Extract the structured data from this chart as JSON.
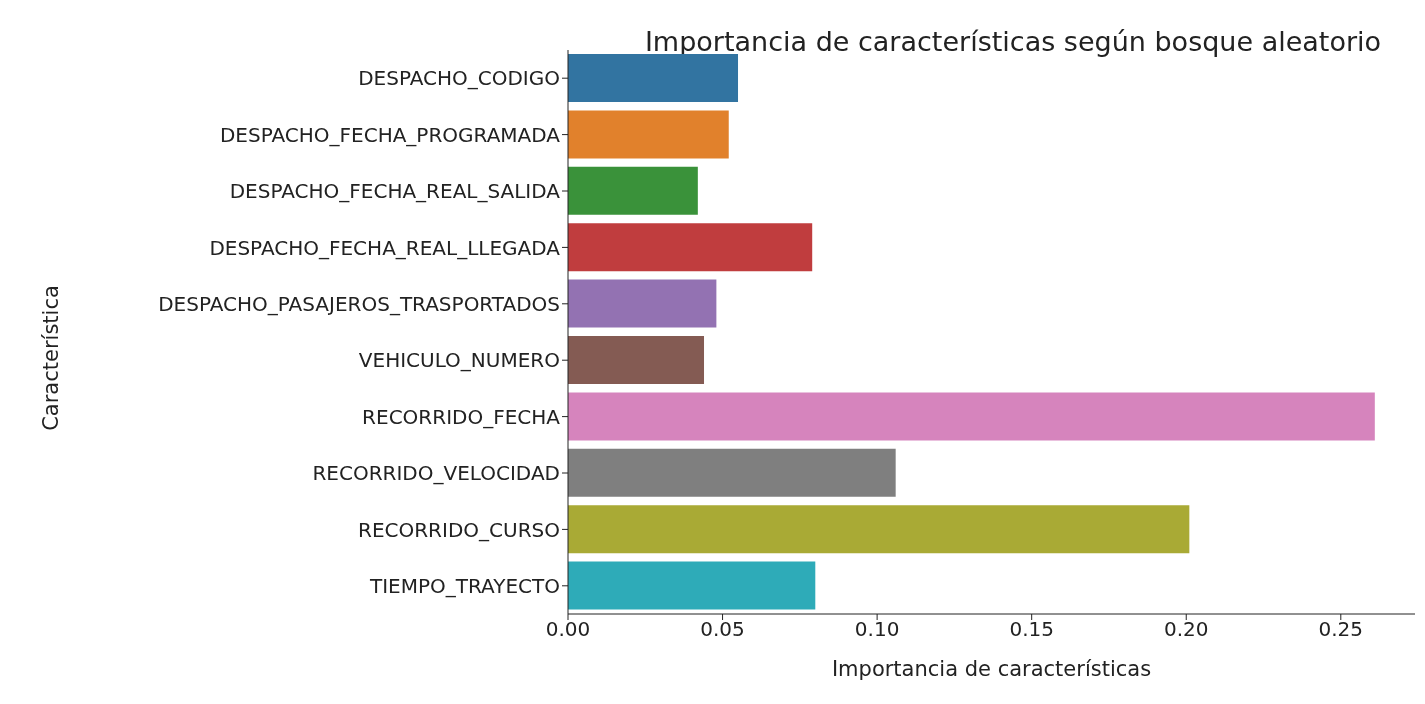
{
  "chart_data": {
    "type": "bar",
    "orientation": "horizontal",
    "title": "Importancia de características según bosque aleatorio",
    "xlabel": "Importancia de características",
    "ylabel": "Característica",
    "categories": [
      "DESPACHO_CODIGO",
      "DESPACHO_FECHA_PROGRAMADA",
      "DESPACHO_FECHA_REAL_SALIDA",
      "DESPACHO_FECHA_REAL_LLEGADA",
      "DESPACHO_PASAJEROS_TRASPORTADOS",
      "VEHICULO_NUMERO",
      "RECORRIDO_FECHA",
      "RECORRIDO_VELOCIDAD",
      "RECORRIDO_CURSO",
      "TIEMPO_TRAYECTO"
    ],
    "values": [
      0.055,
      0.052,
      0.042,
      0.079,
      0.048,
      0.044,
      0.261,
      0.106,
      0.201,
      0.08
    ],
    "colors": [
      "#3274a1",
      "#e1812c",
      "#3a923a",
      "#c03d3e",
      "#9372b2",
      "#845b53",
      "#d684bd",
      "#7f7f7f",
      "#a9aa35",
      "#2eabb8"
    ],
    "xlim": [
      0,
      0.274
    ],
    "xticks": [
      {
        "value": 0,
        "label": "0.00"
      },
      {
        "value": 0.05,
        "label": "0.05"
      },
      {
        "value": 0.1,
        "label": "0.10"
      },
      {
        "value": 0.15,
        "label": "0.15"
      },
      {
        "value": 0.2,
        "label": "0.20"
      },
      {
        "value": 0.25,
        "label": "0.25"
      }
    ],
    "grid": false,
    "legend": false
  }
}
